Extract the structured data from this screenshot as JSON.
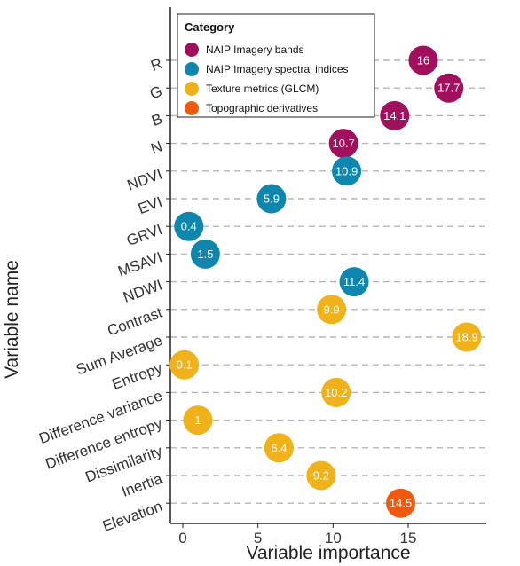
{
  "chart_data": {
    "type": "scatter",
    "xlabel": "Variable importance",
    "ylabel": "Variable name",
    "xlim": [
      -1,
      20
    ],
    "x_ticks": [
      0,
      5,
      10,
      15
    ],
    "grid": "dashed horizontal lines per variable",
    "legend": {
      "title": "Category",
      "placement": "top",
      "entries": [
        {
          "name": "NAIP Imagery bands",
          "color": "#a0105c"
        },
        {
          "name": "NAIP Imagery spectral indices",
          "color": "#0e86ae"
        },
        {
          "name": "Texture metrics (GLCM)",
          "color": "#f0b21a"
        },
        {
          "name": "Topographic derivatives",
          "color": "#ef5a0f"
        }
      ]
    },
    "points": [
      {
        "name": "R",
        "value": 16,
        "label": "16",
        "category": 0
      },
      {
        "name": "G",
        "value": 17.7,
        "label": "17.7",
        "category": 0
      },
      {
        "name": "B",
        "value": 14.1,
        "label": "14.1",
        "category": 0
      },
      {
        "name": "N",
        "value": 10.7,
        "label": "10.7",
        "category": 0
      },
      {
        "name": "NDVI",
        "value": 10.9,
        "label": "10.9",
        "category": 1
      },
      {
        "name": "EVI",
        "value": 5.9,
        "label": "5.9",
        "category": 1
      },
      {
        "name": "GRVI",
        "value": 0.4,
        "label": "0.4",
        "category": 1
      },
      {
        "name": "MSAVI",
        "value": 1.5,
        "label": "1.5",
        "category": 1
      },
      {
        "name": "NDWI",
        "value": 11.4,
        "label": "11.4",
        "category": 1
      },
      {
        "name": "Contrast",
        "value": 9.9,
        "label": "9.9",
        "category": 2
      },
      {
        "name": "Sum Average",
        "value": 18.9,
        "label": "18.9",
        "category": 2
      },
      {
        "name": "Entropy",
        "value": 0.1,
        "label": "0.1",
        "category": 2
      },
      {
        "name": "Difference variance",
        "value": 10.2,
        "label": "10.2",
        "category": 2
      },
      {
        "name": "Difference entropy",
        "value": 1,
        "label": "1",
        "category": 2
      },
      {
        "name": "Dissimilarity",
        "value": 6.4,
        "label": "6.4",
        "category": 2
      },
      {
        "name": "Inertia",
        "value": 9.2,
        "label": "9.2",
        "category": 2
      },
      {
        "name": "Elevation",
        "value": 14.5,
        "label": "14.5",
        "category": 3
      }
    ]
  }
}
